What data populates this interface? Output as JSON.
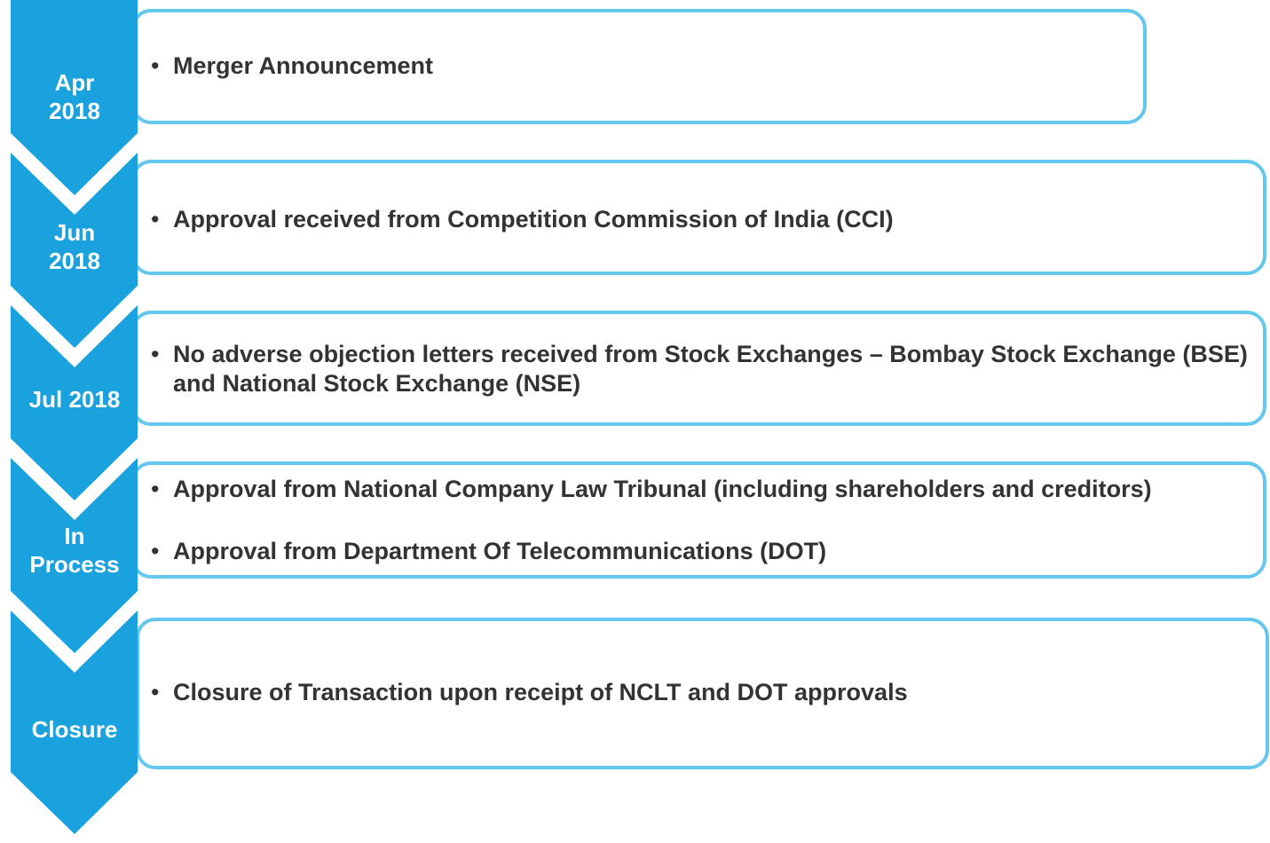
{
  "steps": [
    {
      "label_lines": [
        "Apr",
        "2018"
      ],
      "bullets": [
        "Merger Announcement"
      ]
    },
    {
      "label_lines": [
        "Jun",
        "2018"
      ],
      "bullets": [
        "Approval received from Competition Commission of India (CCI)"
      ]
    },
    {
      "label_lines": [
        "Jul 2018"
      ],
      "bullets": [
        "No adverse objection letters received from Stock Exchanges – Bombay Stock Exchange (BSE) and National Stock Exchange (NSE)"
      ]
    },
    {
      "label_lines": [
        "In",
        "Process"
      ],
      "bullets": [
        "Approval from National Company Law Tribunal (including shareholders and creditors)",
        "Approval from Department Of Telecommunications (DOT)"
      ]
    },
    {
      "label_lines": [
        "Closure"
      ],
      "bullets": [
        "Closure of Transaction upon receipt of NCLT and DOT approvals"
      ]
    }
  ]
}
